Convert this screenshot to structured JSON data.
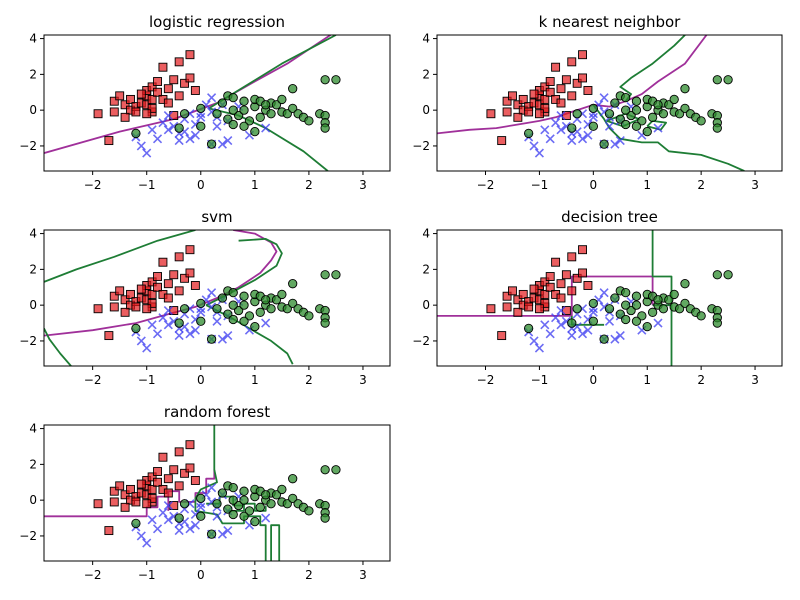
{
  "figure": {
    "title": "",
    "colors": {
      "class_a": "#e31a1c",
      "class_b": "#3b3bf0",
      "class_c": "#2e8b2e",
      "boundary_ab": "#a0309a",
      "boundary_bc": "#1e7d35"
    }
  },
  "chart_data": [
    {
      "type": "scatter",
      "title": "logistic regression",
      "xlim": [
        -2.9,
        3.5
      ],
      "ylim": [
        -3.4,
        4.2
      ],
      "xticks": [
        -2,
        -1,
        0,
        1,
        2,
        3
      ],
      "yticks": [
        -2,
        0,
        2,
        4
      ],
      "grid": false,
      "boundaries": [
        {
          "name": "",
          "color": "#a0309a",
          "points": [
            [
              -2.9,
              -2.4
            ],
            [
              -1.5,
              -1.2
            ],
            [
              -0.5,
              -0.5
            ],
            [
              0.3,
              0.4
            ],
            [
              1.0,
              1.6
            ],
            [
              1.6,
              2.6
            ],
            [
              2.4,
              4.2
            ]
          ]
        },
        {
          "name": "",
          "color": "#1e7d35",
          "points": [
            [
              0.15,
              0.1
            ],
            [
              0.7,
              -0.3
            ],
            [
              1.2,
              -1.0
            ],
            [
              1.9,
              -2.3
            ],
            [
              2.35,
              -3.4
            ]
          ]
        },
        {
          "name": "",
          "color": "#1e7d35",
          "points": [
            [
              0.15,
              0.1
            ],
            [
              0.8,
              1.3
            ],
            [
              1.5,
              2.6
            ],
            [
              2.5,
              4.2
            ]
          ]
        }
      ]
    },
    {
      "type": "scatter",
      "title": "k nearest neighbor",
      "xlim": [
        -2.9,
        3.5
      ],
      "ylim": [
        -3.4,
        4.2
      ],
      "xticks": [
        -2,
        -1,
        0,
        1,
        2,
        3
      ],
      "yticks": [
        -2,
        0,
        2,
        4
      ],
      "grid": false,
      "boundaries": [
        {
          "name": "",
          "color": "#a0309a",
          "points": [
            [
              -2.9,
              -1.3
            ],
            [
              -2.3,
              -1.1
            ],
            [
              -1.8,
              -1.0
            ],
            [
              -1.4,
              -0.8
            ],
            [
              -1.0,
              -0.6
            ],
            [
              -0.7,
              -0.4
            ],
            [
              -0.4,
              -0.1
            ],
            [
              -0.2,
              0.1
            ],
            [
              0.0,
              0.3
            ],
            [
              0.3,
              0.2
            ],
            [
              0.6,
              0.5
            ],
            [
              0.9,
              0.9
            ],
            [
              1.2,
              1.6
            ],
            [
              1.7,
              2.6
            ],
            [
              2.1,
              4.2
            ]
          ]
        },
        {
          "name": "",
          "color": "#1e7d35",
          "points": [
            [
              0.0,
              0.3
            ],
            [
              0.2,
              -0.5
            ],
            [
              0.3,
              -1.0
            ],
            [
              0.5,
              -1.6
            ],
            [
              0.9,
              -1.8
            ],
            [
              1.2,
              -1.8
            ],
            [
              1.4,
              -2.3
            ],
            [
              2.0,
              -2.5
            ],
            [
              2.5,
              -3.0
            ],
            [
              2.8,
              -3.4
            ]
          ]
        },
        {
          "name": "",
          "color": "#1e7d35",
          "points": [
            [
              0.6,
              0.5
            ],
            [
              0.7,
              0.9
            ],
            [
              0.5,
              1.3
            ],
            [
              0.7,
              1.8
            ],
            [
              1.1,
              2.6
            ],
            [
              1.5,
              3.6
            ],
            [
              1.7,
              4.2
            ]
          ]
        },
        {
          "name": "",
          "color": "#1e7d35",
          "points": [
            [
              0.25,
              -0.6
            ],
            [
              0.55,
              -0.9
            ],
            [
              0.85,
              -0.5
            ],
            [
              0.6,
              -0.2
            ],
            [
              0.25,
              -0.6
            ]
          ]
        },
        {
          "name": "",
          "color": "#1e7d35",
          "points": [
            [
              1.0,
              -0.9
            ],
            [
              1.25,
              -1.1
            ],
            [
              1.35,
              -0.7
            ],
            [
              1.1,
              -0.6
            ],
            [
              1.0,
              -0.9
            ]
          ]
        }
      ]
    },
    {
      "type": "scatter",
      "title": "svm",
      "xlim": [
        -2.9,
        3.5
      ],
      "ylim": [
        -3.4,
        4.2
      ],
      "xticks": [
        -2,
        -1,
        0,
        1,
        2,
        3
      ],
      "yticks": [
        -2,
        0,
        2,
        4
      ],
      "grid": false,
      "boundaries": [
        {
          "name": "",
          "color": "#a0309a",
          "points": [
            [
              -2.9,
              -1.7
            ],
            [
              -2.0,
              -1.4
            ],
            [
              -1.2,
              -1.0
            ],
            [
              -0.6,
              -0.5
            ],
            [
              -0.1,
              -0.1
            ],
            [
              0.3,
              0.4
            ],
            [
              0.7,
              1.0
            ],
            [
              1.1,
              1.8
            ],
            [
              1.3,
              2.5
            ],
            [
              1.4,
              3.0
            ],
            [
              1.3,
              3.5
            ],
            [
              1.0,
              4.0
            ],
            [
              0.6,
              4.2
            ]
          ]
        },
        {
          "name": "",
          "color": "#1e7d35",
          "points": [
            [
              -2.9,
              1.3
            ],
            [
              -2.3,
              2.0
            ],
            [
              -1.6,
              2.7
            ],
            [
              -0.8,
              3.6
            ],
            [
              -0.1,
              4.2
            ]
          ]
        },
        {
          "name": "",
          "color": "#1e7d35",
          "points": [
            [
              0.7,
              3.6
            ],
            [
              1.2,
              3.7
            ],
            [
              1.4,
              3.4
            ],
            [
              1.5,
              2.9
            ],
            [
              1.4,
              2.2
            ],
            [
              1.0,
              1.4
            ],
            [
              0.5,
              0.6
            ],
            [
              0.1,
              0.0
            ]
          ]
        },
        {
          "name": "",
          "color": "#1e7d35",
          "points": [
            [
              0.1,
              0.0
            ],
            [
              0.5,
              -0.6
            ],
            [
              0.9,
              -1.3
            ],
            [
              1.3,
              -2.0
            ],
            [
              1.6,
              -2.7
            ],
            [
              1.7,
              -3.3
            ]
          ]
        },
        {
          "name": "",
          "color": "#1e7d35",
          "points": [
            [
              -2.9,
              -1.3
            ],
            [
              -2.8,
              -1.9
            ],
            [
              -2.6,
              -2.7
            ],
            [
              -2.4,
              -3.4
            ]
          ]
        }
      ]
    },
    {
      "type": "scatter",
      "title": "decision tree",
      "xlim": [
        -2.9,
        3.5
      ],
      "ylim": [
        -3.4,
        4.2
      ],
      "xticks": [
        -2,
        -1,
        0,
        1,
        2,
        3
      ],
      "yticks": [
        -2,
        0,
        2,
        4
      ],
      "grid": false,
      "boundaries": [
        {
          "name": "",
          "color": "#a0309a",
          "points": [
            [
              -2.9,
              -0.6
            ],
            [
              -0.4,
              -0.6
            ],
            [
              -0.4,
              1.6
            ],
            [
              1.1,
              1.6
            ],
            [
              1.1,
              0.0
            ]
          ]
        },
        {
          "name": "",
          "color": "#1e7d35",
          "points": [
            [
              1.1,
              4.2
            ],
            [
              1.1,
              1.6
            ],
            [
              1.45,
              1.6
            ],
            [
              1.45,
              -3.4
            ]
          ]
        },
        {
          "name": "",
          "color": "#1e7d35",
          "points": [
            [
              1.1,
              0.0
            ],
            [
              1.45,
              0.0
            ]
          ]
        },
        {
          "name": "",
          "color": "#1e7d35",
          "points": [
            [
              -0.4,
              -0.6
            ],
            [
              -0.4,
              -1.1
            ],
            [
              0.2,
              -1.1
            ]
          ]
        }
      ]
    },
    {
      "type": "scatter",
      "title": "random forest",
      "xlim": [
        -2.9,
        3.5
      ],
      "ylim": [
        -3.4,
        4.2
      ],
      "xticks": [
        -2,
        -1,
        0,
        1,
        2,
        3
      ],
      "yticks": [
        -2,
        0,
        2,
        4
      ],
      "grid": false,
      "boundaries": [
        {
          "name": "",
          "color": "#a0309a",
          "points": [
            [
              -2.9,
              -0.9
            ],
            [
              -1.0,
              -0.9
            ],
            [
              -1.0,
              -0.4
            ],
            [
              -0.8,
              -0.4
            ],
            [
              -0.8,
              0.2
            ],
            [
              -0.6,
              0.2
            ],
            [
              -0.6,
              0.5
            ],
            [
              -0.4,
              0.5
            ],
            [
              -0.4,
              -0.1
            ],
            [
              -0.1,
              -0.1
            ],
            [
              -0.1,
              0.4
            ],
            [
              0.1,
              0.4
            ],
            [
              0.1,
              1.2
            ],
            [
              0.25,
              1.2
            ],
            [
              0.25,
              1.7
            ]
          ]
        },
        {
          "name": "",
          "color": "#a0309a",
          "points": [
            [
              -0.6,
              -0.6
            ],
            [
              -0.6,
              0.2
            ]
          ]
        },
        {
          "name": "",
          "color": "#1e7d35",
          "points": [
            [
              0.25,
              4.2
            ],
            [
              0.25,
              1.7
            ],
            [
              0.3,
              1.0
            ],
            [
              0.0,
              0.6
            ],
            [
              -0.1,
              0.1
            ],
            [
              -0.1,
              -0.6
            ],
            [
              0.3,
              -0.8
            ],
            [
              0.4,
              -1.3
            ],
            [
              0.8,
              -1.3
            ],
            [
              0.8,
              -0.9
            ],
            [
              1.1,
              -0.9
            ],
            [
              1.1,
              -1.4
            ],
            [
              1.2,
              -1.4
            ],
            [
              1.2,
              -3.4
            ]
          ]
        },
        {
          "name": "",
          "color": "#1e7d35",
          "points": [
            [
              1.3,
              -3.4
            ],
            [
              1.3,
              -1.4
            ],
            [
              1.45,
              -1.4
            ],
            [
              1.45,
              -3.4
            ]
          ]
        },
        {
          "name": "",
          "color": "#1e7d35",
          "points": [
            [
              0.5,
              -0.6
            ],
            [
              0.8,
              -0.6
            ],
            [
              0.8,
              -0.2
            ],
            [
              1.0,
              -0.2
            ],
            [
              1.0,
              -0.6
            ],
            [
              1.2,
              -0.6
            ],
            [
              1.2,
              -0.3
            ]
          ]
        },
        {
          "name": "",
          "color": "#1e7d35",
          "points": [
            [
              0.1,
              -0.2
            ],
            [
              0.35,
              -0.2
            ],
            [
              0.35,
              0.2
            ],
            [
              0.6,
              0.2
            ],
            [
              0.6,
              -0.3
            ],
            [
              0.8,
              -0.3
            ]
          ]
        }
      ]
    }
  ],
  "points": {
    "class_a": [
      [
        -1.9,
        -0.2
      ],
      [
        -1.7,
        -1.7
      ],
      [
        -1.6,
        -0.1
      ],
      [
        -1.6,
        0.5
      ],
      [
        -1.5,
        0.8
      ],
      [
        -1.4,
        0.3
      ],
      [
        -1.3,
        0.0
      ],
      [
        -1.3,
        0.6
      ],
      [
        -1.2,
        0.2
      ],
      [
        -1.1,
        0.4
      ],
      [
        -1.0,
        0.3
      ],
      [
        -1.0,
        0.8
      ],
      [
        -1.0,
        1.1
      ],
      [
        -0.9,
        -0.1
      ],
      [
        -0.9,
        0.6
      ],
      [
        -0.9,
        1.3
      ],
      [
        -0.8,
        1.0
      ],
      [
        -0.8,
        1.6
      ],
      [
        -0.7,
        0.6
      ],
      [
        -0.7,
        2.4
      ],
      [
        -0.6,
        0.4
      ],
      [
        -0.6,
        1.2
      ],
      [
        -0.5,
        -0.3
      ],
      [
        -0.5,
        1.7
      ],
      [
        -0.4,
        0.8
      ],
      [
        -0.4,
        2.7
      ],
      [
        -0.3,
        1.5
      ],
      [
        -0.2,
        1.8
      ],
      [
        -0.2,
        3.1
      ],
      [
        -0.1,
        1.1
      ],
      [
        -1.1,
        0.9
      ],
      [
        -1.2,
        -0.1
      ],
      [
        -1.4,
        -0.4
      ],
      [
        -0.9,
        0.1
      ],
      [
        -1.0,
        -0.2
      ]
    ],
    "class_b": [
      [
        -1.2,
        -1.5
      ],
      [
        -1.1,
        -2.0
      ],
      [
        -1.0,
        -2.4
      ],
      [
        -0.9,
        -1.1
      ],
      [
        -0.8,
        -1.6
      ],
      [
        -0.7,
        -0.7
      ],
      [
        -0.6,
        -0.3
      ],
      [
        -0.5,
        -0.9
      ],
      [
        -0.4,
        -1.3
      ],
      [
        -0.4,
        -1.7
      ],
      [
        -0.3,
        -0.5
      ],
      [
        -0.3,
        -1.2
      ],
      [
        -0.2,
        -1.6
      ],
      [
        -0.2,
        -0.2
      ],
      [
        -0.1,
        -0.8
      ],
      [
        -0.1,
        -1.4
      ],
      [
        0.0,
        -0.4
      ],
      [
        0.1,
        0.3
      ],
      [
        0.2,
        0.7
      ],
      [
        0.2,
        -0.1
      ],
      [
        0.3,
        -0.9
      ],
      [
        0.3,
        -0.4
      ],
      [
        0.4,
        -1.9
      ],
      [
        0.5,
        -1.7
      ],
      [
        0.5,
        -0.6
      ],
      [
        0.2,
        -1.9
      ],
      [
        0.9,
        -1.4
      ],
      [
        1.2,
        -1.0
      ],
      [
        0.7,
        0.2
      ],
      [
        -0.6,
        -1.1
      ],
      [
        0.0,
        -0.2
      ],
      [
        0.4,
        0.3
      ]
    ],
    "class_c": [
      [
        -1.2,
        -1.3
      ],
      [
        -0.4,
        -1.0
      ],
      [
        -0.3,
        -0.2
      ],
      [
        0.0,
        -0.9
      ],
      [
        0.0,
        0.1
      ],
      [
        0.2,
        -1.9
      ],
      [
        0.3,
        -0.2
      ],
      [
        0.4,
        0.4
      ],
      [
        0.5,
        0.8
      ],
      [
        0.5,
        -0.5
      ],
      [
        0.6,
        0.7
      ],
      [
        0.6,
        -0.8
      ],
      [
        0.7,
        -0.3
      ],
      [
        0.8,
        0.5
      ],
      [
        0.8,
        0.0
      ],
      [
        0.9,
        -0.6
      ],
      [
        1.0,
        0.2
      ],
      [
        1.0,
        -1.2
      ],
      [
        1.0,
        0.6
      ],
      [
        1.1,
        -0.4
      ],
      [
        1.2,
        0.0
      ],
      [
        1.3,
        0.4
      ],
      [
        1.3,
        -0.2
      ],
      [
        1.4,
        0.3
      ],
      [
        1.5,
        0.6
      ],
      [
        1.5,
        -0.1
      ],
      [
        1.6,
        -0.2
      ],
      [
        1.7,
        1.2
      ],
      [
        1.7,
        0.1
      ],
      [
        1.8,
        -0.2
      ],
      [
        1.9,
        -0.4
      ],
      [
        2.0,
        -0.6
      ],
      [
        2.2,
        -0.2
      ],
      [
        2.3,
        -0.3
      ],
      [
        2.3,
        -0.7
      ],
      [
        2.3,
        -1.0
      ],
      [
        2.3,
        1.7
      ],
      [
        2.5,
        1.7
      ],
      [
        0.8,
        -0.9
      ],
      [
        1.1,
        0.5
      ],
      [
        0.6,
        0.0
      ],
      [
        1.2,
        0.3
      ]
    ]
  }
}
